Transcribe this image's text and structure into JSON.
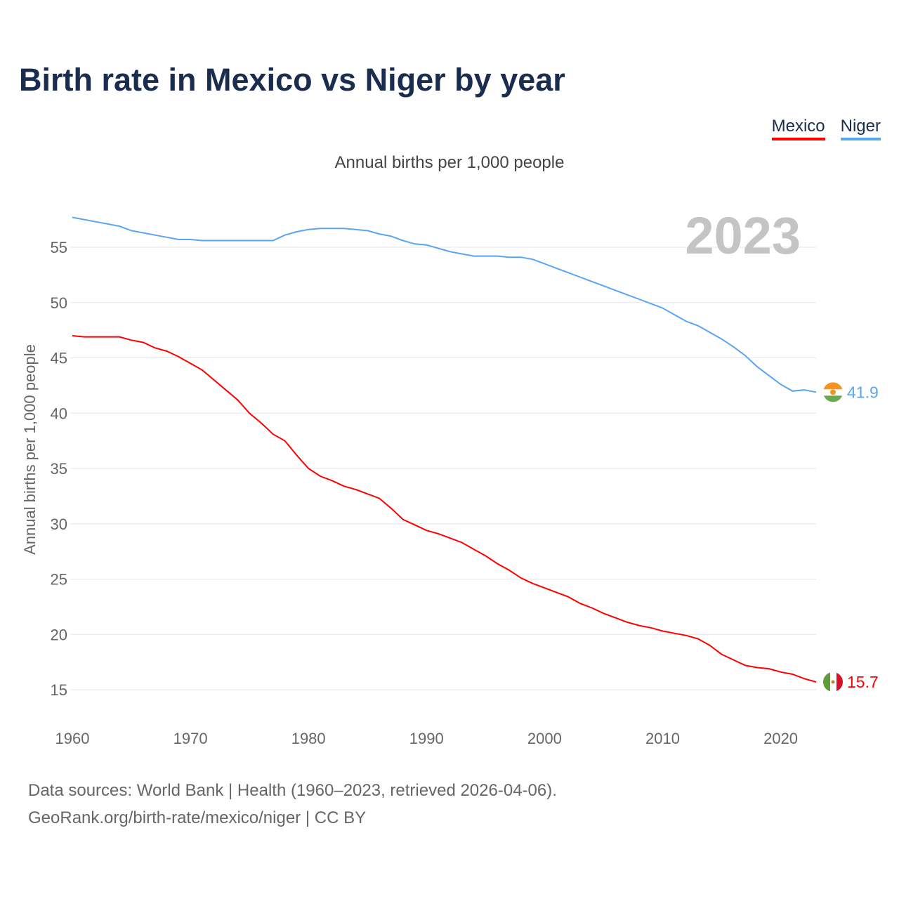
{
  "chart_data": {
    "type": "line",
    "title": "Birth rate in Mexico vs Niger by year",
    "subtitle": "Annual births per 1,000 people",
    "ylabel": "Annual births per 1,000 people",
    "xlabel": "",
    "year_label": "2023",
    "xlim": [
      1960,
      2023
    ],
    "ylim": [
      12,
      59
    ],
    "xticks": [
      1960,
      1970,
      1980,
      1990,
      2000,
      2010,
      2020
    ],
    "yticks": [
      15,
      20,
      25,
      30,
      35,
      40,
      45,
      50,
      55
    ],
    "grid": true,
    "legend_position": "top-right",
    "x": [
      1960,
      1961,
      1962,
      1963,
      1964,
      1965,
      1966,
      1967,
      1968,
      1969,
      1970,
      1971,
      1972,
      1973,
      1974,
      1975,
      1976,
      1977,
      1978,
      1979,
      1980,
      1981,
      1982,
      1983,
      1984,
      1985,
      1986,
      1987,
      1988,
      1989,
      1990,
      1991,
      1992,
      1993,
      1994,
      1995,
      1996,
      1997,
      1998,
      1999,
      2000,
      2001,
      2002,
      2003,
      2004,
      2005,
      2006,
      2007,
      2008,
      2009,
      2010,
      2011,
      2012,
      2013,
      2014,
      2015,
      2016,
      2017,
      2018,
      2019,
      2020,
      2021,
      2022,
      2023
    ],
    "series": [
      {
        "name": "Mexico",
        "color": "#ff0000",
        "end_label": "15.7",
        "values": [
          47.0,
          46.9,
          46.9,
          46.9,
          46.9,
          46.6,
          46.4,
          45.9,
          45.6,
          45.1,
          44.5,
          43.9,
          43.0,
          42.1,
          41.2,
          40.0,
          39.1,
          38.1,
          37.5,
          36.2,
          35.0,
          34.3,
          33.9,
          33.4,
          33.1,
          32.7,
          32.3,
          31.4,
          30.4,
          29.9,
          29.4,
          29.1,
          28.7,
          28.3,
          27.7,
          27.1,
          26.4,
          25.8,
          25.1,
          24.6,
          24.2,
          23.8,
          23.4,
          22.8,
          22.4,
          21.9,
          21.5,
          21.1,
          20.8,
          20.6,
          20.3,
          20.1,
          19.9,
          19.6,
          19.0,
          18.2,
          17.7,
          17.2,
          17.0,
          16.9,
          16.6,
          16.4,
          16.0,
          15.7
        ]
      },
      {
        "name": "Niger",
        "color": "#5aa5ef",
        "end_label": "41.9",
        "values": [
          57.7,
          57.5,
          57.3,
          57.1,
          56.9,
          56.5,
          56.3,
          56.1,
          55.9,
          55.7,
          55.7,
          55.6,
          55.6,
          55.6,
          55.6,
          55.6,
          55.6,
          55.6,
          56.1,
          56.4,
          56.6,
          56.7,
          56.7,
          56.7,
          56.6,
          56.5,
          56.2,
          56.0,
          55.6,
          55.3,
          55.2,
          54.9,
          54.6,
          54.4,
          54.2,
          54.2,
          54.2,
          54.1,
          54.1,
          53.9,
          53.5,
          53.1,
          52.7,
          52.3,
          51.9,
          51.5,
          51.1,
          50.7,
          50.3,
          49.9,
          49.5,
          48.9,
          48.3,
          47.9,
          47.3,
          46.7,
          46.0,
          45.2,
          44.2,
          43.4,
          42.6,
          42.0,
          42.1,
          41.9
        ]
      }
    ]
  },
  "footer": {
    "line1": "Data sources: World Bank | Health (1960–2023, retrieved 2026-04-06).",
    "line2": "GeoRank.org/birth-rate/mexico/niger | CC BY"
  }
}
